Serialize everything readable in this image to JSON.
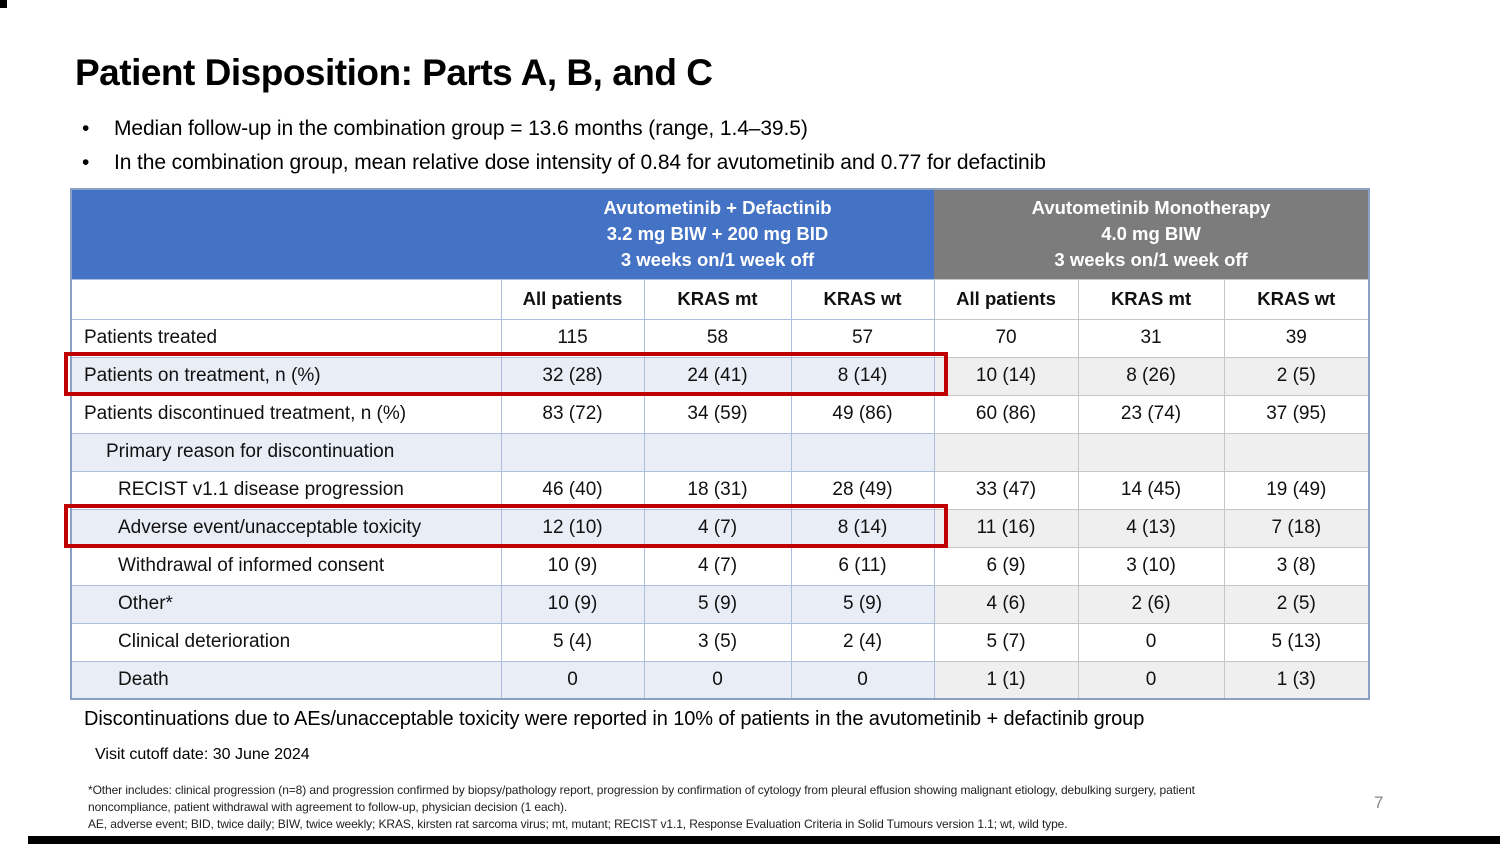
{
  "slide": {
    "title": "Patient Disposition: Parts A, B, and C",
    "bullets": [
      "Median follow-up in the combination group = 13.6 months (range, 1.4–39.5)",
      "In the combination group, mean relative dose intensity of 0.84 for avutometinib and 0.77 for defactinib"
    ],
    "summary": "Discontinuations due to AEs/unacceptable toxicity were reported in 10% of patients in the avutometinib + defactinib group",
    "visit_cutoff": "Visit cutoff date: 30 June 2024",
    "footnotes": [
      "*Other includes: clinical progression (n=8) and progression confirmed by biopsy/pathology report, progression by confirmation of cytology from pleural effusion showing malignant etiology, debulking surgery, patient",
      "noncompliance, patient withdrawal with agreement to follow-up, physician decision (1 each).",
      "AE, adverse event; BID, twice daily; BIW, twice weekly; KRAS, kirsten rat sarcoma virus; mt, mutant; RECIST v1.1, Response Evaluation Criteria in Solid Tumours version 1.1; wt, wild type."
    ],
    "page_number": "7"
  },
  "table": {
    "group_headers": {
      "combination": {
        "line1": "Avutometinib + Defactinib",
        "line2": "3.2 mg BIW + 200 mg BID",
        "line3": "3 weeks on/1 week off"
      },
      "monotherapy": {
        "line1": "Avutometinib Monotherapy",
        "line2": "4.0 mg BIW",
        "line3": "3 weeks on/1 week off"
      }
    },
    "column_headers": [
      "All patients",
      "KRAS mt",
      "KRAS wt",
      "All patients",
      "KRAS mt",
      "KRAS wt"
    ],
    "rows": [
      {
        "label": "Patients treated",
        "values": [
          "115",
          "58",
          "57",
          "70",
          "31",
          "39"
        ]
      },
      {
        "label": "Patients on treatment, n (%)",
        "values": [
          "32 (28)",
          "24 (41)",
          "8 (14)",
          "10 (14)",
          "8 (26)",
          "2 (5)"
        ]
      },
      {
        "label": "Patients discontinued treatment, n (%)",
        "values": [
          "83 (72)",
          "34 (59)",
          "49 (86)",
          "60 (86)",
          "23 (74)",
          "37 (95)"
        ]
      },
      {
        "label": "Primary reason for discontinuation",
        "values": [
          "",
          "",
          "",
          "",
          "",
          ""
        ]
      },
      {
        "label": "RECIST v1.1 disease progression",
        "values": [
          "46 (40)",
          "18 (31)",
          "28 (49)",
          "33 (47)",
          "14 (45)",
          "19 (49)"
        ]
      },
      {
        "label": "Adverse event/unacceptable toxicity",
        "values": [
          "12 (10)",
          "4 (7)",
          "8 (14)",
          "11 (16)",
          "4 (13)",
          "7 (18)"
        ]
      },
      {
        "label": "Withdrawal of informed consent",
        "values": [
          "10 (9)",
          "4 (7)",
          "6 (11)",
          "6 (9)",
          "3 (10)",
          "3 (8)"
        ]
      },
      {
        "label": "Other*",
        "values": [
          "10 (9)",
          "5 (9)",
          "5 (9)",
          "4 (6)",
          "2 (6)",
          "2 (5)"
        ]
      },
      {
        "label": "Clinical deterioration",
        "values": [
          "5 (4)",
          "3 (5)",
          "2 (4)",
          "5 (7)",
          "0",
          "5 (13)"
        ]
      },
      {
        "label": "Death",
        "values": [
          "0",
          "0",
          "0",
          "1 (1)",
          "0",
          "1 (3)"
        ]
      }
    ]
  },
  "colors": {
    "header_blue": "#4472C4",
    "header_gray": "#7C7C7C",
    "row_shade_blue": "#E9EDF6",
    "row_shade_gray": "#EFEFEF",
    "highlight_red": "#C00000"
  }
}
